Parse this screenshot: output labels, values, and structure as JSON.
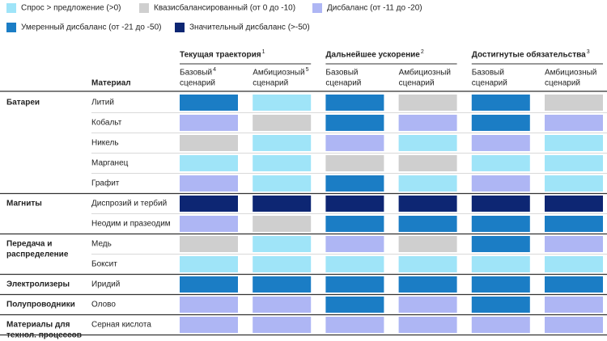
{
  "legend": [
    {
      "label": "Спрос > предложение (>0)",
      "color": "#9fe4f8"
    },
    {
      "label": "Квазисбалансированный (от 0 до -10)",
      "color": "#cfcfcf"
    },
    {
      "label": "Дисбаланс (от -11 до -20)",
      "color": "#aeb6f4"
    },
    {
      "label": "Умеренный дисбаланс (от -21 до -50)",
      "color": "#1b7dc5"
    },
    {
      "label": "Значительный дисбаланс (>-50)",
      "color": "#0d2673"
    }
  ],
  "material_header": "Материал",
  "column_groups": [
    {
      "title": "Текущая траектория",
      "note": "1",
      "columns": [
        {
          "lines": [
            "Базовый",
            "сценарий"
          ],
          "note": "4"
        },
        {
          "lines": [
            "Амбициозный",
            "сценарий"
          ],
          "note": "5"
        }
      ]
    },
    {
      "title": "Дальнейшее ускорение",
      "note": "2",
      "columns": [
        {
          "lines": [
            "Базовый",
            "сценарий"
          ]
        },
        {
          "lines": [
            "Амбициозный",
            "сценарий"
          ]
        }
      ]
    },
    {
      "title": "Достигнутые обязательства",
      "note": "3",
      "columns": [
        {
          "lines": [
            "Базовый",
            "сценарий"
          ]
        },
        {
          "lines": [
            "Амбициозный",
            "сценарий"
          ]
        }
      ]
    }
  ],
  "groups": [
    {
      "lines": [
        "Батареи"
      ],
      "rows": [
        {
          "material": "Литий",
          "levels": [
            3,
            0,
            3,
            1,
            3,
            1
          ]
        },
        {
          "material": "Кобальт",
          "levels": [
            2,
            1,
            3,
            2,
            3,
            2
          ]
        },
        {
          "material": "Никель",
          "levels": [
            1,
            0,
            2,
            0,
            2,
            0
          ]
        },
        {
          "material": "Марганец",
          "levels": [
            0,
            0,
            1,
            1,
            0,
            0
          ]
        },
        {
          "material": "Графит",
          "levels": [
            2,
            0,
            3,
            0,
            2,
            0
          ]
        }
      ]
    },
    {
      "lines": [
        "Магниты"
      ],
      "rows": [
        {
          "material": "Диспрозий и тербий",
          "levels": [
            4,
            4,
            4,
            4,
            4,
            4
          ]
        },
        {
          "material": "Неодим и празеодим",
          "levels": [
            2,
            1,
            3,
            3,
            3,
            3
          ]
        }
      ]
    },
    {
      "lines": [
        "Передача и",
        "распределение"
      ],
      "rows": [
        {
          "material": "Медь",
          "levels": [
            1,
            0,
            2,
            1,
            3,
            2
          ]
        },
        {
          "material": "Боксит",
          "levels": [
            0,
            0,
            0,
            0,
            0,
            0
          ]
        }
      ]
    },
    {
      "lines": [
        "Электролизеры"
      ],
      "rows": [
        {
          "material": "Иридий",
          "levels": [
            3,
            3,
            3,
            3,
            3,
            3
          ]
        }
      ]
    },
    {
      "lines": [
        "Полупроводники"
      ],
      "rows": [
        {
          "material": "Олово",
          "levels": [
            2,
            2,
            3,
            2,
            3,
            2
          ]
        }
      ]
    },
    {
      "lines": [
        "Материалы для",
        "технол. процессов"
      ],
      "rows": [
        {
          "material": "Серная кислота",
          "levels": [
            2,
            2,
            2,
            2,
            2,
            2
          ]
        }
      ]
    }
  ]
}
